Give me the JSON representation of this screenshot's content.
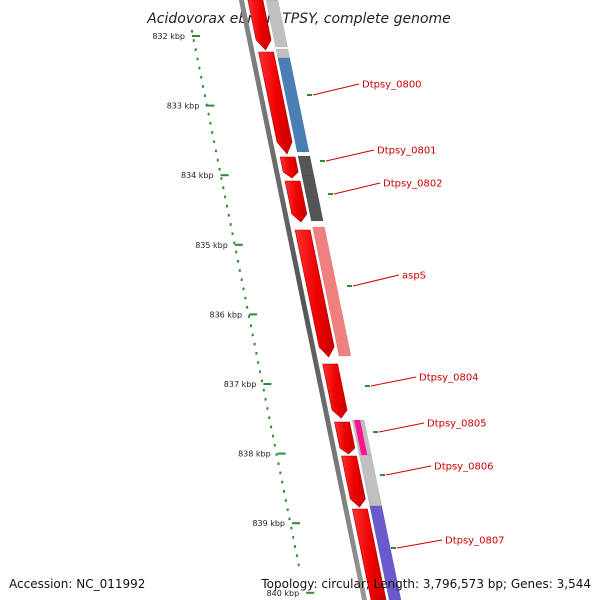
{
  "title": "Acidovorax ebreus TPSY, complete genome",
  "footer": {
    "accession": "Accession: NC_011992",
    "summary": "Topology: circular; Length: 3,796,573 bp; Genes: 3,544"
  },
  "ticks": [
    "832 kbp",
    "833 kbp",
    "834 kbp",
    "835 kbp",
    "836 kbp",
    "837 kbp",
    "838 kbp",
    "839 kbp",
    "840 kbp"
  ],
  "genes": [
    "Dtpsy_0800",
    "Dtpsy_0801",
    "Dtpsy_0802",
    "aspS",
    "Dtpsy_0804",
    "Dtpsy_0805",
    "Dtpsy_0806",
    "Dtpsy_0807"
  ],
  "colors": {
    "cds": "#ff0000",
    "label": "#cc0000",
    "backbone": "#666666",
    "gc_tick": "#2e8b2e",
    "feature_blue": "#4a7fb5",
    "feature_dark": "#555555",
    "feature_pink": "#f08080",
    "feature_magenta": "#ff1493",
    "feature_purple": "#6a5acd",
    "feature_lightgray": "#c0c0c0"
  }
}
